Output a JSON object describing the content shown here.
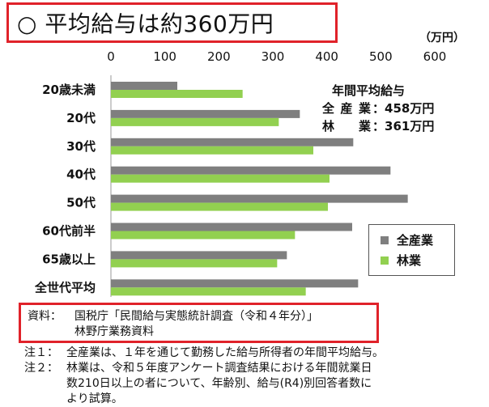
{
  "title": "○ 平均給与は約360万円",
  "unit_label": "（万円）",
  "annotation": {
    "heading": "年間平均給与",
    "rows": [
      {
        "label": "全産業",
        "sep": "：",
        "value": "458",
        "unit": "万円"
      },
      {
        "label": "林業",
        "sep": "：",
        "value": "361",
        "unit": "万円"
      }
    ]
  },
  "legend": [
    {
      "name": "全産業",
      "color": "#7f7f7f"
    },
    {
      "name": "林業",
      "color": "#92d050"
    }
  ],
  "source": {
    "label": "資料：",
    "line1": "国税庁「民間給与実態統計調査（令和４年分）」",
    "line2": "林野庁業務資料"
  },
  "notes": [
    {
      "key": "注１：",
      "text": "全産業は、１年を通じて勤務した給与所得者の年間平均給与。",
      "cont": []
    },
    {
      "key": "注２：",
      "text": "林業は、令和５年度アンケート調査結果における年間就業日",
      "cont": [
        "数210日以上の者について、年齢別、給与(R4)別回答者数に",
        "より試算。"
      ]
    }
  ],
  "chart_data": {
    "type": "bar",
    "orientation": "horizontal",
    "categories": [
      "20歳未満",
      "20代",
      "30代",
      "40代",
      "50代",
      "60代前半",
      "65歳以上",
      "全世代平均"
    ],
    "series": [
      {
        "name": "全産業",
        "values": [
          123,
          350,
          449,
          518,
          550,
          447,
          326,
          458
        ]
      },
      {
        "name": "林業",
        "values": [
          244,
          311,
          375,
          405,
          402,
          341,
          308,
          361
        ]
      }
    ],
    "xticks": [
      "0",
      "100",
      "200",
      "300",
      "400",
      "500",
      "600"
    ],
    "xlim": [
      0,
      600
    ],
    "axis_position": "top",
    "grid": false
  }
}
